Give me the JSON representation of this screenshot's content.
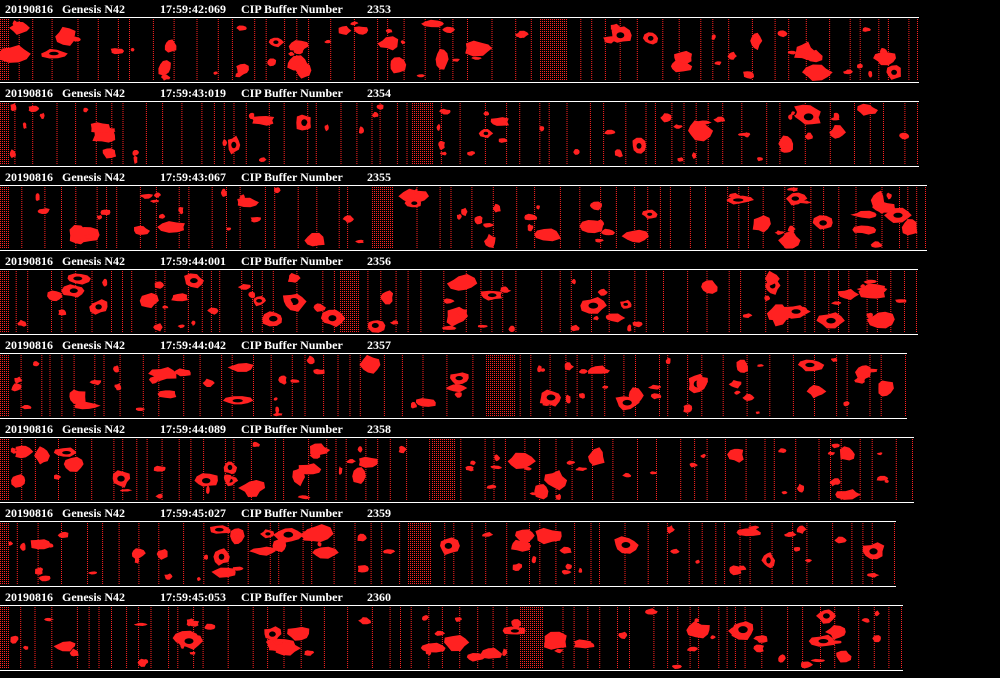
{
  "strips": [
    {
      "date": "20190816",
      "probe": "Genesis N42",
      "time": "17:59:42:069",
      "label": "CIP Buffer Number",
      "number": "2353"
    },
    {
      "date": "20190816",
      "probe": "Genesis N42",
      "time": "17:59:43:019",
      "label": "CIP Buffer Number",
      "number": "2354"
    },
    {
      "date": "20190816",
      "probe": "Genesis N42",
      "time": "17:59:43:067",
      "label": "CIP Buffer Number",
      "number": "2355"
    },
    {
      "date": "20190816",
      "probe": "Genesis N42",
      "time": "17:59:44:001",
      "label": "CIP Buffer Number",
      "number": "2356"
    },
    {
      "date": "20190816",
      "probe": "Genesis N42",
      "time": "17:59:44:042",
      "label": "CIP Buffer Number",
      "number": "2357"
    },
    {
      "date": "20190816",
      "probe": "Genesis N42",
      "time": "17:59:44:089",
      "label": "CIP Buffer Number",
      "number": "2358"
    },
    {
      "date": "20190816",
      "probe": "Genesis N42",
      "time": "17:59:45:027",
      "label": "CIP Buffer Number",
      "number": "2359"
    },
    {
      "date": "20190816",
      "probe": "Genesis N42",
      "time": "17:59:45:053",
      "label": "CIP Buffer Number",
      "number": "2360"
    }
  ]
}
